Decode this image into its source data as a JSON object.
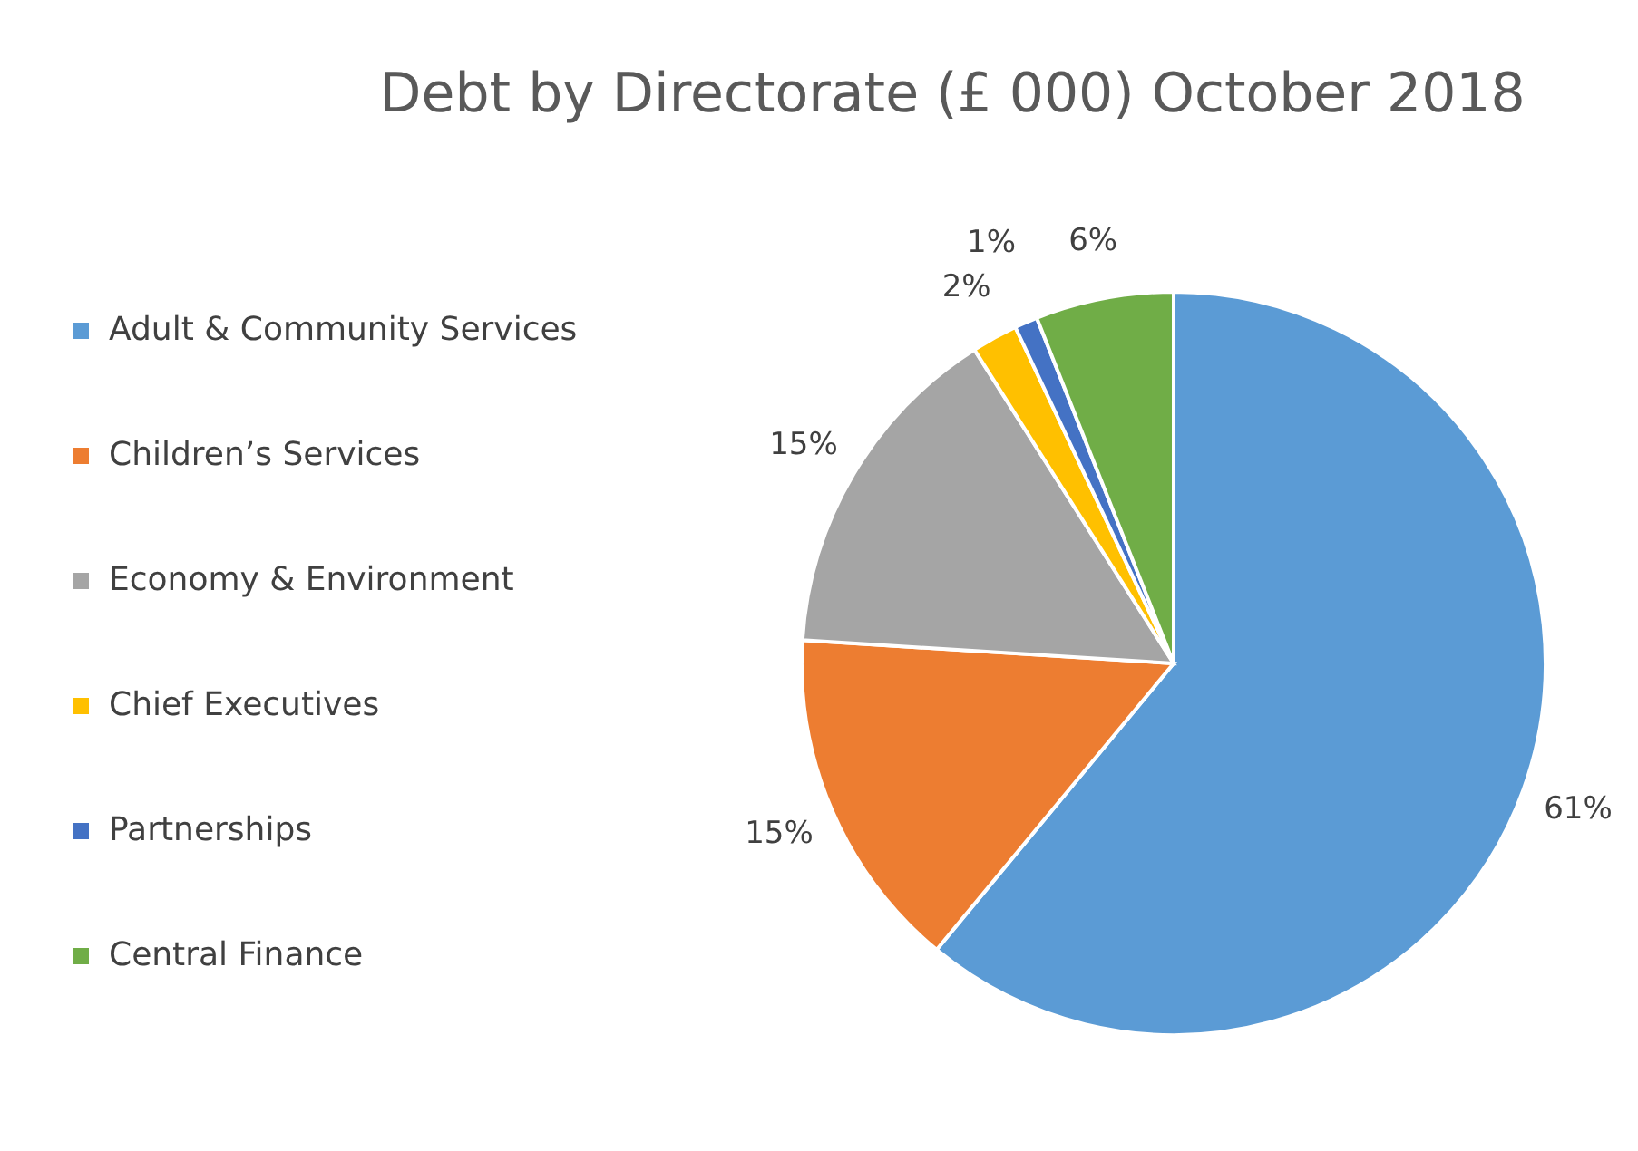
{
  "chart_data": {
    "type": "pie",
    "title": "Debt by Directorate (£ 000) October 2018",
    "categories": [
      "Adult & Community Services",
      "Children’s Services",
      "Economy & Environment",
      "Chief Executives",
      "Partnerships",
      "Central Finance"
    ],
    "values": [
      61,
      15,
      15,
      2,
      1,
      6
    ],
    "colors": [
      "#5b9bd5",
      "#ed7d31",
      "#a5a5a5",
      "#ffc000",
      "#4472c4",
      "#70ad47"
    ],
    "value_labels": [
      "61%",
      "15%",
      "15%",
      "2%",
      "1%",
      "6%"
    ],
    "legend": "left"
  }
}
